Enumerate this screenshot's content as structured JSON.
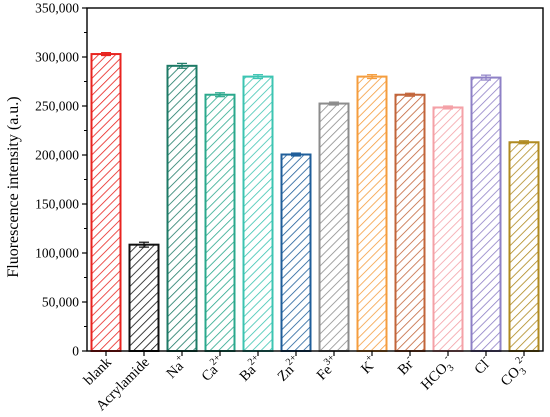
{
  "chart_data": {
    "type": "bar",
    "ylabel": "Fluorescence intensity (a.u.)",
    "xlabel": "",
    "ylim": [
      0,
      350000
    ],
    "yticks": [
      0,
      50000,
      100000,
      150000,
      200000,
      250000,
      300000,
      350000
    ],
    "ytick_labels": [
      "0",
      "50,000",
      "100,000",
      "150,000",
      "200,000",
      "250,000",
      "300,000",
      "350,000"
    ],
    "categories": [
      {
        "base": "blank",
        "sup": ""
      },
      {
        "base": "Acrylamide",
        "sup": ""
      },
      {
        "base": "Na",
        "sup": "+"
      },
      {
        "base": "Ca",
        "sup": "2+"
      },
      {
        "base": "Ba",
        "sup": "2+"
      },
      {
        "base": "Zn",
        "sup": "2+"
      },
      {
        "base": "Fe",
        "sup": "3+"
      },
      {
        "base": "K",
        "sup": "+"
      },
      {
        "base": "Br",
        "sup": "-"
      },
      {
        "base": "HCO",
        "sub": "3",
        "sup": "-"
      },
      {
        "base": "Cl",
        "sup": "-"
      },
      {
        "base": "CO",
        "sub": "3",
        "sup": "2-"
      }
    ],
    "values": [
      303000,
      108500,
      291000,
      261500,
      280000,
      200500,
      252500,
      280000,
      261500,
      248500,
      279000,
      213000
    ],
    "errors": [
      1500,
      2500,
      2500,
      2000,
      2000,
      1500,
      1500,
      2000,
      1500,
      1500,
      2500,
      1500
    ],
    "colors": [
      "#e8231f",
      "#111111",
      "#1d7a66",
      "#2aa88c",
      "#3cc4b2",
      "#1f5e9a",
      "#8c8c8c",
      "#f59d3d",
      "#c2653a",
      "#f4a1a7",
      "#8e80c6",
      "#b08a20"
    ],
    "pattern": "diagonal-hatch",
    "grid": false,
    "legend": "none"
  }
}
